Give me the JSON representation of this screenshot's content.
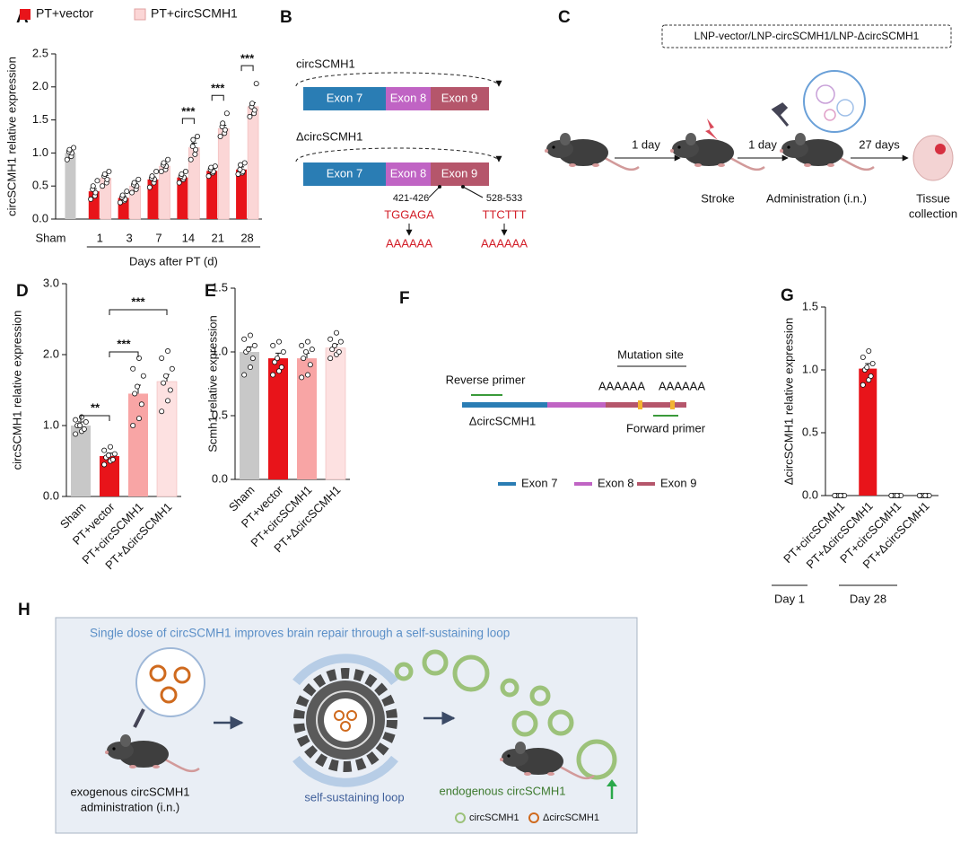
{
  "chart_data": [
    {
      "type": "bar",
      "panel_label": "A",
      "ylabel": "circSCMH1 relative expression",
      "xlabel": "Days after PT (d)",
      "categories": [
        "Sham",
        "1",
        "3",
        "7",
        "14",
        "21",
        "28"
      ],
      "ylim": [
        0,
        2.5
      ],
      "yticks": [
        {
          "value": 0,
          "label": "0.0"
        },
        0.5,
        {
          "value": 1,
          "label": "1.0"
        },
        1.5,
        {
          "value": 2,
          "label": "2.0"
        },
        2.5
      ],
      "series": [
        {
          "color": "#c8c8c8",
          "values": [
            1.0,
            null,
            null,
            null,
            null,
            null,
            null
          ],
          "errors": [
            0.03,
            null,
            null,
            null,
            null,
            null,
            null
          ],
          "points": [
            [
              0.9,
              0.95,
              1.0,
              1.02,
              1.05,
              1.08
            ],
            null,
            null,
            null,
            null,
            null,
            null
          ]
        },
        {
          "name": "PT+vector",
          "color": "#e8141a",
          "values": [
            null,
            0.42,
            0.32,
            0.6,
            0.63,
            0.73,
            0.75
          ],
          "errors": [
            null,
            0.04,
            0.03,
            0.04,
            0.03,
            0.03,
            0.04
          ],
          "points": [
            null,
            [
              0.3,
              0.35,
              0.4,
              0.45,
              0.5,
              0.58
            ],
            [
              0.25,
              0.28,
              0.3,
              0.33,
              0.36,
              0.42
            ],
            [
              0.48,
              0.55,
              0.6,
              0.62,
              0.65,
              0.72
            ],
            [
              0.55,
              0.6,
              0.63,
              0.65,
              0.68,
              0.72
            ],
            [
              0.65,
              0.7,
              0.72,
              0.75,
              0.78,
              0.8
            ],
            [
              0.68,
              0.7,
              0.72,
              0.75,
              0.82,
              0.85
            ]
          ]
        },
        {
          "name": "PT+circSCMH1",
          "color": "#fbd6d6",
          "values": [
            null,
            0.62,
            0.5,
            0.8,
            1.08,
            1.37,
            1.7
          ],
          "errors": [
            null,
            0.04,
            0.04,
            0.04,
            0.07,
            0.05,
            0.06
          ],
          "points": [
            null,
            [
              0.5,
              0.55,
              0.6,
              0.65,
              0.68,
              0.72
            ],
            [
              0.4,
              0.45,
              0.5,
              0.52,
              0.55,
              0.6
            ],
            [
              0.72,
              0.75,
              0.8,
              0.82,
              0.85,
              0.9
            ],
            [
              0.9,
              0.98,
              1.05,
              1.1,
              1.2,
              1.25
            ],
            [
              1.25,
              1.3,
              1.35,
              1.4,
              1.45,
              1.6
            ],
            [
              1.55,
              1.6,
              1.65,
              1.7,
              1.75,
              2.05
            ]
          ]
        }
      ],
      "significance": [
        "***",
        "***",
        "***"
      ]
    },
    {
      "type": "bar",
      "panel_label": "D",
      "ylabel": "circSCMH1 relative expression",
      "categories": [
        "Sham",
        "PT+vector",
        "PT+circSCMH1",
        "PT+ΔcircSCMH1"
      ],
      "ylim": [
        0,
        3
      ],
      "yticks": [
        {
          "value": 0,
          "label": "0.0"
        },
        {
          "value": 1,
          "label": "1.0"
        },
        {
          "value": 2,
          "label": "2.0"
        },
        {
          "value": 3,
          "label": "3.0"
        }
      ],
      "series": [
        {
          "colors": [
            "#c8c8c8",
            "#e8141a",
            "#f8a5a5",
            "#fde1e1"
          ],
          "values": [
            1.0,
            0.57,
            1.45,
            1.62
          ],
          "errors": [
            0.05,
            0.04,
            0.12,
            0.1
          ],
          "points": [
            [
              0.88,
              0.92,
              0.95,
              1.0,
              1.0,
              1.05,
              1.08,
              1.12
            ],
            [
              0.45,
              0.5,
              0.52,
              0.55,
              0.58,
              0.6,
              0.65,
              0.7
            ],
            [
              1.0,
              1.1,
              1.3,
              1.45,
              1.55,
              1.7,
              1.8,
              1.95
            ],
            [
              1.2,
              1.35,
              1.5,
              1.6,
              1.7,
              1.8,
              1.95,
              2.05
            ]
          ]
        }
      ],
      "significance": [
        "**",
        "***",
        "***"
      ]
    },
    {
      "type": "bar",
      "panel_label": "E",
      "ylabel": "Scmh1 relative expression",
      "categories": [
        "Sham",
        "PT+vector",
        "PT+circSCMH1",
        "PT+ΔcircSCMH1"
      ],
      "ylim": [
        0,
        1.5
      ],
      "yticks": [
        {
          "value": 0,
          "label": "0.0"
        },
        0.5,
        {
          "value": 1,
          "label": "1.0"
        },
        1.5
      ],
      "series": [
        {
          "colors": [
            "#c8c8c8",
            "#e8141a",
            "#f8a5a5",
            "#fde1e1"
          ],
          "values": [
            1.0,
            0.95,
            0.95,
            1.03
          ],
          "errors": [
            0.04,
            0.04,
            0.04,
            0.03
          ],
          "points": [
            [
              0.82,
              0.88,
              0.95,
              1.0,
              1.02,
              1.05,
              1.1,
              1.13
            ],
            [
              0.82,
              0.85,
              0.88,
              0.92,
              0.95,
              1.0,
              1.05,
              1.08
            ],
            [
              0.8,
              0.82,
              0.9,
              0.95,
              1.0,
              1.02,
              1.05,
              1.08
            ],
            [
              0.95,
              0.98,
              1.0,
              1.02,
              1.05,
              1.08,
              1.1,
              1.15
            ]
          ]
        }
      ]
    },
    {
      "type": "bar",
      "panel_label": "G",
      "ylabel": "ΔcircSCMH1 relative expression",
      "categories": [
        "PT+circSCMH1",
        "PT+ΔcircSCMH1",
        "PT+circSCMH1",
        "PT+ΔcircSCMH1"
      ],
      "ylim": [
        0,
        1.5
      ],
      "yticks": [
        {
          "value": 0,
          "label": "0.0"
        },
        0.5,
        {
          "value": 1,
          "label": "1.0"
        },
        1.5
      ],
      "series": [
        {
          "color": "#e8141a",
          "values": [
            0,
            1.01,
            0,
            0
          ],
          "errors": [
            0,
            0.04,
            0,
            0
          ],
          "points": [
            [
              0,
              0,
              0,
              0,
              0,
              0,
              0,
              0
            ],
            [
              0.88,
              0.92,
              0.95,
              1.0,
              1.02,
              1.05,
              1.1,
              1.15
            ],
            [
              0,
              0,
              0,
              0,
              0,
              0,
              0,
              0
            ],
            [
              0,
              0,
              0,
              0,
              0,
              0,
              0,
              0
            ]
          ]
        }
      ],
      "groups": [
        "Day 1",
        "Day 28"
      ]
    }
  ],
  "diagrams": {
    "B": {
      "panel_label": "B",
      "top_title": "circSCMH1",
      "top_exons": [
        "Exon 7",
        "Exon 8",
        "Exon 9"
      ],
      "bottom_title": "ΔcircSCMH1",
      "bottom_exons": [
        "Exon 7",
        "Exon 8",
        "Exon 9"
      ],
      "sites": [
        "421-426",
        "528-533"
      ],
      "wild": [
        "TGGAGA",
        "TTCTTT"
      ],
      "mutant": [
        "AAAAAA",
        "AAAAAA"
      ]
    },
    "C": {
      "panel_label": "C",
      "box": "LNP-vector/LNP-circSCMH1/LNP-ΔcircSCMH1",
      "intervals": [
        "1 day",
        "1 day",
        "27 days"
      ],
      "stages": [
        "Stroke",
        "Administration (i.n.)"
      ],
      "end": [
        "Tissue",
        "collection"
      ]
    },
    "F": {
      "panel_label": "F",
      "mutation_site": "Mutation site",
      "reverse_primer": "Reverse primer",
      "forward_primer": "Forward primer",
      "mutants": [
        "AAAAAA",
        "AAAAAA"
      ],
      "name": "ΔcircSCMH1",
      "legend": [
        "Exon 7",
        "Exon 8",
        "Exon 9"
      ]
    },
    "H": {
      "panel_label": "H",
      "title": "Single dose of circSCMH1 improves brain repair through a self-sustaining loop",
      "left": [
        "exogenous circSCMH1",
        "administration (i.n.)"
      ],
      "middle": "self-sustaining loop",
      "right": "endogenous circSCMH1",
      "legend": [
        "circSCMH1",
        "ΔcircSCMH1"
      ]
    }
  }
}
